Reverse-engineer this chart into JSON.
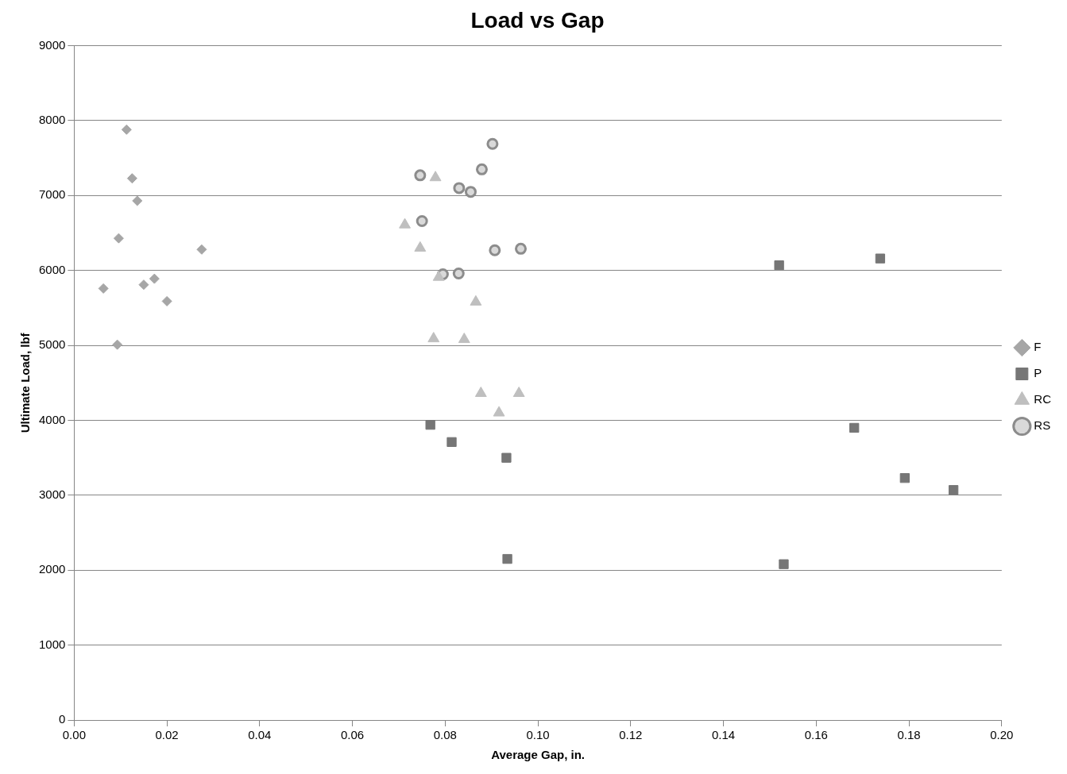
{
  "chart_data": {
    "type": "scatter",
    "title": "Load vs Gap",
    "xlabel": "Average Gap, in.",
    "ylabel": "Ultimate Load, lbf",
    "xlim": [
      0,
      0.2
    ],
    "xticks": [
      {
        "value": 0,
        "label": "0.00"
      },
      {
        "value": 0.02,
        "label": "0.02"
      },
      {
        "value": 0.04,
        "label": "0.04"
      },
      {
        "value": 0.06,
        "label": "0.06"
      },
      {
        "value": 0.08,
        "label": "0.08"
      },
      {
        "value": 0.1,
        "label": "0.10"
      },
      {
        "value": 0.12,
        "label": "0.12"
      },
      {
        "value": 0.14,
        "label": "0.14"
      },
      {
        "value": 0.16,
        "label": "0.16"
      },
      {
        "value": 0.18,
        "label": "0.18"
      },
      {
        "value": 0.2,
        "label": "0.20"
      }
    ],
    "ylim": [
      0,
      9000
    ],
    "yticks": [
      0,
      1000,
      2000,
      3000,
      4000,
      5000,
      6000,
      7000,
      8000,
      9000
    ],
    "grid": "y",
    "legend": "right",
    "series": [
      {
        "name": "F",
        "color": "#a6a6a6",
        "marker": "diamond",
        "x": [
          0.0113,
          0.0125,
          0.0136,
          0.0096,
          0.0275,
          0.0063,
          0.015,
          0.0173,
          0.02,
          0.0093
        ],
        "values": [
          7880,
          7230,
          6930,
          6430,
          6280,
          5760,
          5810,
          5890,
          5590,
          5010
        ]
      },
      {
        "name": "P",
        "color": "#767676",
        "marker": "square",
        "x": [
          0.0768,
          0.0814,
          0.0932,
          0.0934,
          0.152,
          0.1738,
          0.1682,
          0.1791,
          0.1896,
          0.153
        ],
        "values": [
          3940,
          3710,
          3500,
          2150,
          6070,
          6160,
          3900,
          3230,
          3070,
          2080
        ]
      },
      {
        "name": "RC",
        "color": "#bfbfbf",
        "marker": "triangle",
        "x": [
          0.0779,
          0.0713,
          0.0746,
          0.0786,
          0.0866,
          0.0775,
          0.0841,
          0.0877,
          0.0959,
          0.0916
        ],
        "values": [
          7240,
          6610,
          6300,
          5910,
          5580,
          5090,
          5080,
          4360,
          4360,
          4100
        ]
      },
      {
        "name": "RS",
        "color": "#8c8c8c",
        "marker": "circle",
        "x": [
          0.0902,
          0.0746,
          0.0879,
          0.083,
          0.0855,
          0.075,
          0.0907,
          0.0963,
          0.0795,
          0.0829
        ],
        "values": [
          7690,
          7270,
          7350,
          7100,
          7050,
          6660,
          6270,
          6290,
          5950,
          5960
        ]
      }
    ]
  }
}
